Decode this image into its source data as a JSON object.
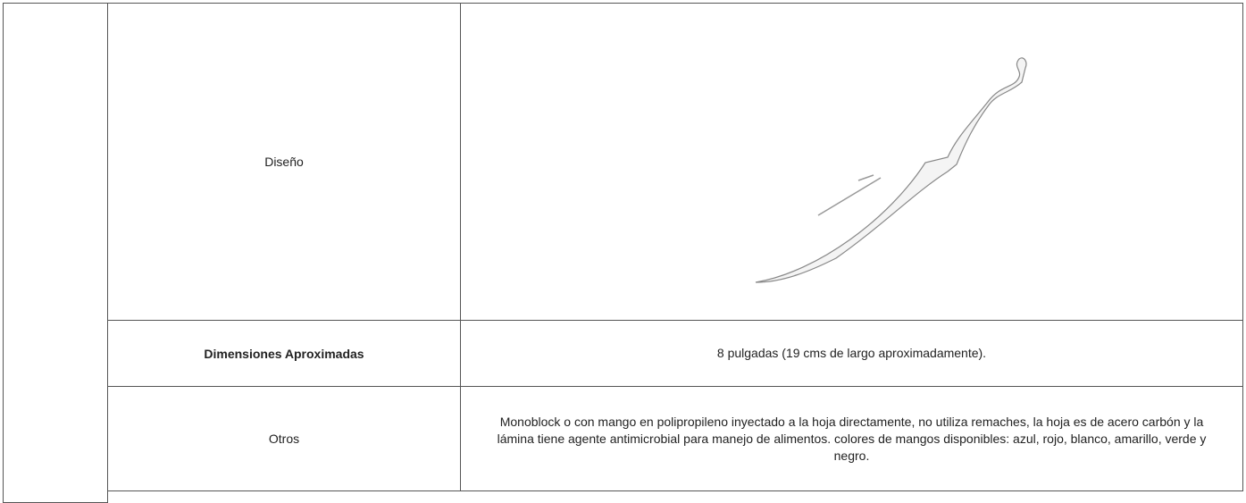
{
  "table": {
    "rows": [
      {
        "label": "Diseño"
      },
      {
        "label": "Dimensiones Aproximadas",
        "value": "8 pulgadas (19 cms de largo aproximadamente)."
      },
      {
        "label": "Otros",
        "value": "Monoblock o con mango en polipropileno inyectado a la hoja directamente, no utiliza remaches, la hoja es de acero carbón y la lámina tiene agente antimicrobial para manejo de alimentos. colores de mangos disponibles: azul, rojo, blanco, amarillo, verde y negro."
      }
    ]
  }
}
